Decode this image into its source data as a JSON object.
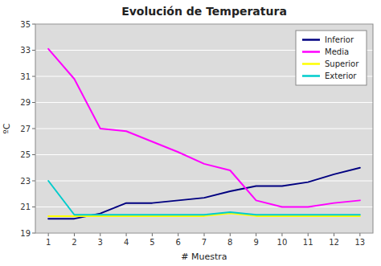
{
  "chart_data": {
    "type": "line",
    "title": "Evolución de Temperatura",
    "xlabel": "# Muestra",
    "ylabel": "ºC",
    "x": [
      1,
      2,
      3,
      4,
      5,
      6,
      7,
      8,
      9,
      10,
      11,
      12,
      13
    ],
    "series": [
      {
        "name": "Inferior",
        "color": "#000080",
        "values": [
          20.1,
          20.1,
          20.5,
          21.3,
          21.3,
          21.5,
          21.7,
          22.2,
          22.6,
          22.6,
          22.9,
          23.5,
          24.0
        ]
      },
      {
        "name": "Media",
        "color": "#FF00FF",
        "values": [
          33.1,
          30.8,
          27.0,
          26.8,
          26.0,
          25.2,
          24.3,
          23.8,
          21.5,
          21.0,
          21.0,
          21.3,
          21.5
        ]
      },
      {
        "name": "Superior",
        "color": "#FFFF00",
        "values": [
          20.3,
          20.3,
          20.3,
          20.3,
          20.3,
          20.3,
          20.3,
          20.5,
          20.3,
          20.3,
          20.3,
          20.3,
          20.3
        ]
      },
      {
        "name": "Exterior",
        "color": "#00CCCC",
        "values": [
          23.0,
          20.4,
          20.4,
          20.4,
          20.4,
          20.4,
          20.4,
          20.6,
          20.4,
          20.4,
          20.4,
          20.4,
          20.4
        ]
      }
    ],
    "xlim": [
      0.5,
      13.5
    ],
    "xticks": [
      1,
      2,
      3,
      4,
      5,
      6,
      7,
      8,
      9,
      10,
      11,
      12,
      13
    ],
    "ylim": [
      19,
      35
    ],
    "yticks": [
      19,
      21,
      23,
      25,
      27,
      29,
      31,
      33,
      35
    ],
    "grid": true,
    "legend": "upper right"
  }
}
